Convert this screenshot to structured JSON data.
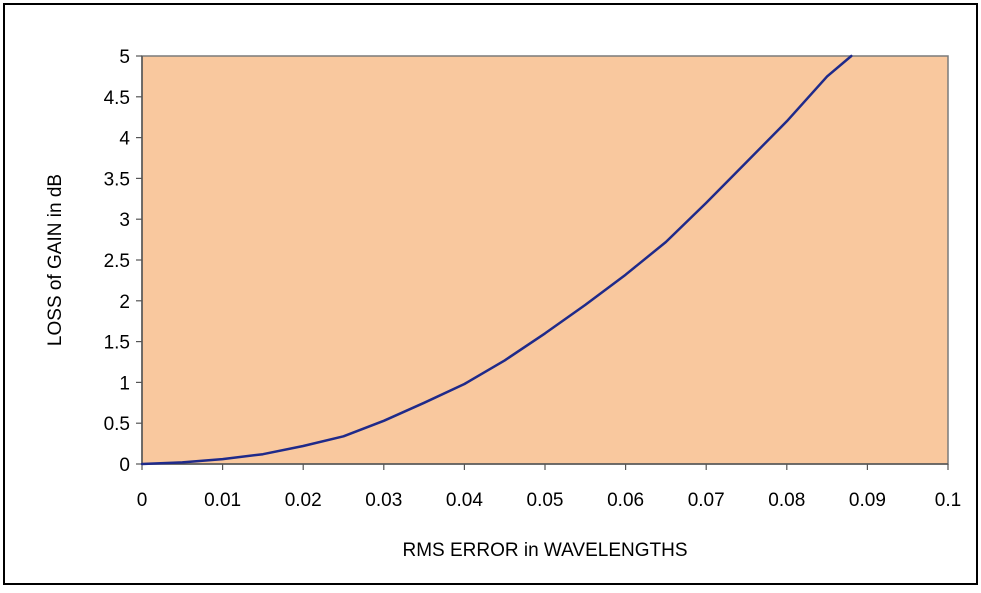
{
  "chart_data": {
    "type": "line",
    "xlabel": "RMS ERROR in WAVELENGTHS",
    "ylabel": "LOSS of GAIN in dB",
    "xlim": [
      0,
      0.1
    ],
    "ylim": [
      0,
      5
    ],
    "x_ticks": [
      "0",
      "0.01",
      "0.02",
      "0.03",
      "0.04",
      "0.05",
      "0.06",
      "0.07",
      "0.08",
      "0.09",
      "0.1"
    ],
    "y_ticks": [
      "0",
      "0.5",
      "1",
      "1.5",
      "2",
      "2.5",
      "3",
      "3.5",
      "4",
      "4.5",
      "5"
    ],
    "grid": false,
    "legend": "none",
    "series": [
      {
        "x": [
          0,
          0.005,
          0.01,
          0.015,
          0.02,
          0.025,
          0.03,
          0.035,
          0.04,
          0.045,
          0.05,
          0.055,
          0.06,
          0.065,
          0.07,
          0.075,
          0.08,
          0.085,
          0.088
        ],
        "values": [
          0,
          0.02,
          0.06,
          0.12,
          0.22,
          0.34,
          0.53,
          0.75,
          0.98,
          1.27,
          1.6,
          1.95,
          2.32,
          2.72,
          3.2,
          3.7,
          4.2,
          4.75,
          5.0
        ]
      }
    ],
    "colors": {
      "plot_background": "#F9C89E",
      "line": "#1F2A8A",
      "frame": "#000000"
    }
  }
}
